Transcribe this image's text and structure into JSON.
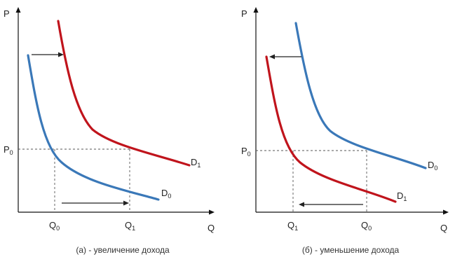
{
  "colors": {
    "d0_curve": "#3a78b8",
    "d1_curve": "#c0141c",
    "axis": "#111111",
    "guide": "#555555",
    "arrow": "#222222"
  },
  "panel_a": {
    "y_axis_label": "P",
    "x_axis_label": "Q",
    "p0_label": {
      "main": "P",
      "sub": "0"
    },
    "q_first_label": {
      "main": "Q",
      "sub": "0"
    },
    "q_second_label": {
      "main": "Q",
      "sub": "1"
    },
    "curve_upper_label": {
      "main": "D",
      "sub": "1"
    },
    "curve_lower_label": {
      "main": "D",
      "sub": "0"
    },
    "caption": "(а) - увеличение дохода",
    "shift_arrows": [
      "shift-right-top",
      "shift-right-bottom"
    ]
  },
  "panel_b": {
    "y_axis_label": "P",
    "x_axis_label": "Q",
    "p0_label": {
      "main": "P",
      "sub": "0"
    },
    "q_first_label": {
      "main": "Q",
      "sub": "1"
    },
    "q_second_label": {
      "main": "Q",
      "sub": "0"
    },
    "curve_upper_label": {
      "main": "D",
      "sub": "0"
    },
    "curve_lower_label": {
      "main": "D",
      "sub": "1"
    },
    "caption": "(б) -  уменьшение дохода",
    "shift_arrows": [
      "shift-left-top",
      "shift-left-bottom"
    ]
  }
}
